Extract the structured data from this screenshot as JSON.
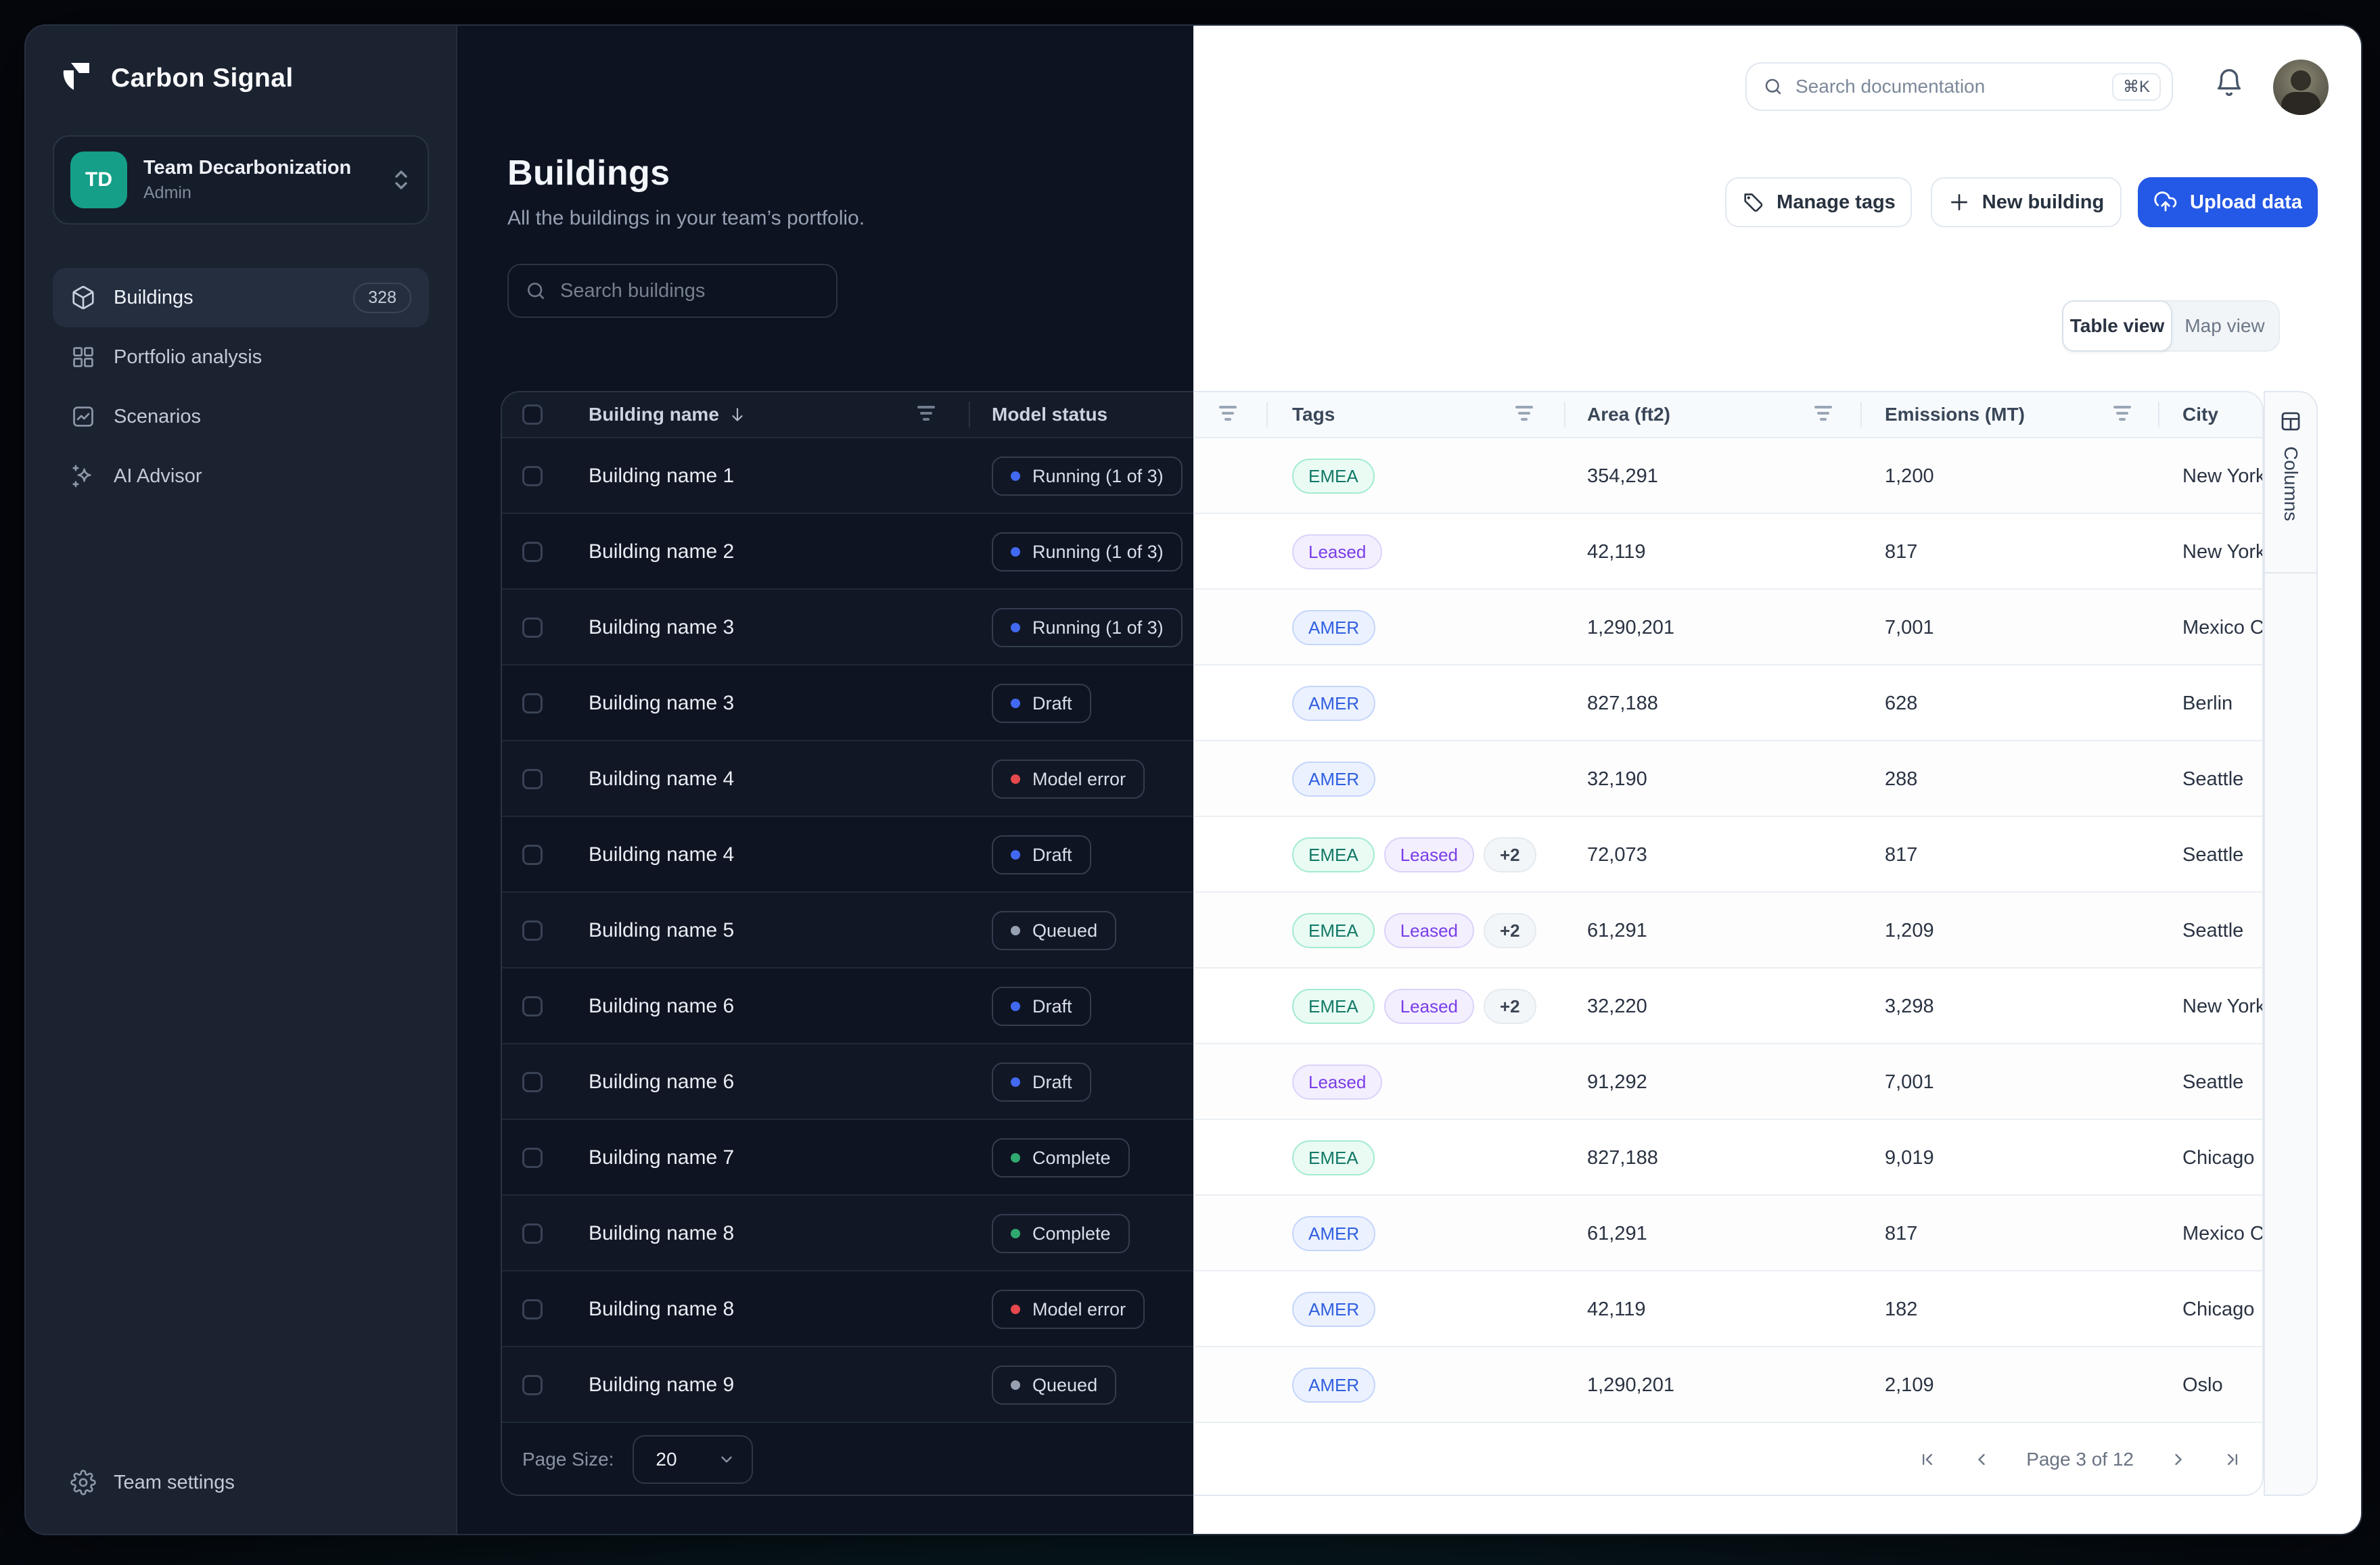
{
  "brand": {
    "name": "Carbon Signal"
  },
  "workspace": {
    "initials": "TD",
    "name": "Team Decarbonization",
    "role": "Admin"
  },
  "sidebar": {
    "items": [
      {
        "label": "Buildings",
        "badge": "328",
        "active": true
      },
      {
        "label": "Portfolio analysis"
      },
      {
        "label": "Scenarios"
      },
      {
        "label": "AI Advisor"
      }
    ],
    "footer_item": {
      "label": "Team settings"
    }
  },
  "topbar": {
    "search_placeholder": "Search documentation",
    "shortcut": "⌘K"
  },
  "page_header": {
    "title": "Buildings",
    "subtitle": "All the buildings in your team’s portfolio.",
    "search_placeholder": "Search buildings"
  },
  "actions": {
    "manage_tags": "Manage tags",
    "new_building": "New building",
    "upload_data": "Upload data"
  },
  "view_toggle": {
    "options": [
      "Table view",
      "Map view"
    ],
    "active": "Table view"
  },
  "table": {
    "columns": [
      {
        "label": "Building name",
        "sorted": "desc"
      },
      {
        "label": "Model status"
      },
      {
        "label": "Tags"
      },
      {
        "label": "Area (ft2)"
      },
      {
        "label": "Emissions (MT)"
      },
      {
        "label": "City"
      }
    ],
    "side_panel_label": "Columns",
    "rows": [
      {
        "name": "Building name 1",
        "status": "Running (1 of 3)",
        "status_type": "running",
        "tags": [
          {
            "label": "EMEA",
            "type": "emea"
          }
        ],
        "area": "354,291",
        "emissions": "1,200",
        "city": "New York"
      },
      {
        "name": "Building name 2",
        "status": "Running (1 of 3)",
        "status_type": "running",
        "tags": [
          {
            "label": "Leased",
            "type": "leased"
          }
        ],
        "area": "42,119",
        "emissions": "817",
        "city": "New York"
      },
      {
        "name": "Building name 3",
        "status": "Running (1 of 3)",
        "status_type": "running",
        "tags": [
          {
            "label": "AMER",
            "type": "amer"
          }
        ],
        "area": "1,290,201",
        "emissions": "7,001",
        "city": "Mexico City"
      },
      {
        "name": "Building name 3",
        "status": "Draft",
        "status_type": "draft",
        "tags": [
          {
            "label": "AMER",
            "type": "amer"
          }
        ],
        "area": "827,188",
        "emissions": "628",
        "city": "Berlin"
      },
      {
        "name": "Building name 4",
        "status": "Model error",
        "status_type": "error",
        "tags": [
          {
            "label": "AMER",
            "type": "amer"
          }
        ],
        "area": "32,190",
        "emissions": "288",
        "city": "Seattle"
      },
      {
        "name": "Building name 4",
        "status": "Draft",
        "status_type": "draft",
        "tags": [
          {
            "label": "EMEA",
            "type": "emea"
          },
          {
            "label": "Leased",
            "type": "leased"
          },
          {
            "label": "+2",
            "type": "more"
          }
        ],
        "area": "72,073",
        "emissions": "817",
        "city": "Seattle"
      },
      {
        "name": "Building name 5",
        "status": "Queued",
        "status_type": "queued",
        "tags": [
          {
            "label": "EMEA",
            "type": "emea"
          },
          {
            "label": "Leased",
            "type": "leased"
          },
          {
            "label": "+2",
            "type": "more"
          }
        ],
        "area": "61,291",
        "emissions": "1,209",
        "city": "Seattle"
      },
      {
        "name": "Building name 6",
        "status": "Draft",
        "status_type": "draft",
        "tags": [
          {
            "label": "EMEA",
            "type": "emea"
          },
          {
            "label": "Leased",
            "type": "leased"
          },
          {
            "label": "+2",
            "type": "more"
          }
        ],
        "area": "32,220",
        "emissions": "3,298",
        "city": "New York"
      },
      {
        "name": "Building name 6",
        "status": "Draft",
        "status_type": "draft",
        "tags": [
          {
            "label": "Leased",
            "type": "leased"
          }
        ],
        "area": "91,292",
        "emissions": "7,001",
        "city": "Seattle"
      },
      {
        "name": "Building name 7",
        "status": "Complete",
        "status_type": "complete",
        "tags": [
          {
            "label": "EMEA",
            "type": "emea"
          }
        ],
        "area": "827,188",
        "emissions": "9,019",
        "city": "Chicago"
      },
      {
        "name": "Building name 8",
        "status": "Complete",
        "status_type": "complete",
        "tags": [
          {
            "label": "AMER",
            "type": "amer"
          }
        ],
        "area": "61,291",
        "emissions": "817",
        "city": "Mexico City"
      },
      {
        "name": "Building name 8",
        "status": "Model error",
        "status_type": "error",
        "tags": [
          {
            "label": "AMER",
            "type": "amer"
          }
        ],
        "area": "42,119",
        "emissions": "182",
        "city": "Chicago"
      },
      {
        "name": "Building name 9",
        "status": "Queued",
        "status_type": "queued",
        "tags": [
          {
            "label": "AMER",
            "type": "amer"
          }
        ],
        "area": "1,290,201",
        "emissions": "2,109",
        "city": "Oslo"
      }
    ]
  },
  "pagination": {
    "page_size_label": "Page Size:",
    "page_size": "20",
    "label": "Page 3 of 12"
  },
  "colors": {
    "accent": "#2458E6",
    "brand_teal": "#159F88",
    "status": {
      "running": "#4169F2",
      "draft": "#4169F2",
      "error": "#E5484D",
      "queued": "#96A0B0",
      "complete": "#2FA970"
    },
    "tags": {
      "emea": {
        "bg": "#E9FBF3",
        "border": "#A4EBD0",
        "text": "#117866"
      },
      "leased": {
        "bg": "#F3EFFE",
        "border": "#DCD2FA",
        "text": "#7A3DE8"
      },
      "amer": {
        "bg": "#EBF1FE",
        "border": "#C5D6FB",
        "text": "#2F5FE0"
      },
      "more": {
        "bg": "#F3F6F9",
        "border": "#E4EAF0",
        "text": "#3C4654"
      }
    }
  }
}
